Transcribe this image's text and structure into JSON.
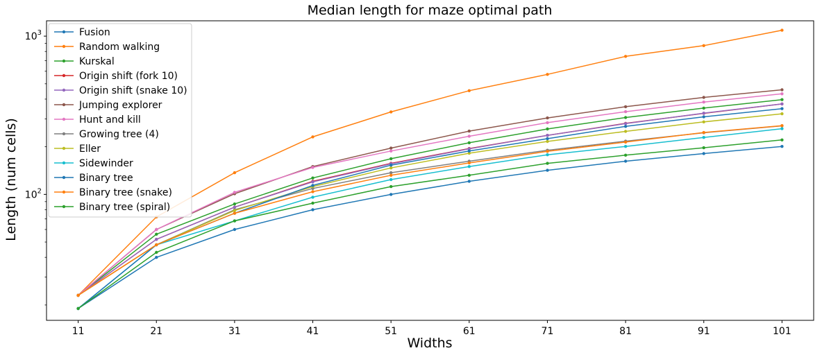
{
  "chart_data": {
    "type": "line",
    "title": "Median length for maze optimal path",
    "xlabel": "Widths",
    "ylabel": "Length (num cells)",
    "y_scale": "log",
    "ylim": [
      16,
      1250
    ],
    "x": [
      11,
      21,
      31,
      41,
      51,
      61,
      71,
      81,
      91,
      101
    ],
    "x_tick_labels": [
      "11",
      "21",
      "31",
      "41",
      "51",
      "61",
      "71",
      "81",
      "91",
      "101"
    ],
    "y_tick_labels": [
      {
        "value": 100,
        "base": "10",
        "exp": "2"
      },
      {
        "value": 1000,
        "base": "10",
        "exp": "3"
      }
    ],
    "grid": false,
    "legend_position": "top-left",
    "marker": "dot",
    "series": [
      {
        "name": "Fusion",
        "color": "#1f77b4",
        "values": [
          19,
          40,
          60,
          80,
          100,
          121,
          142,
          162,
          181,
          201
        ]
      },
      {
        "name": "Random walking",
        "color": "#ff7f0e",
        "values": [
          23,
          72,
          137,
          231,
          332,
          452,
          573,
          745,
          871,
          1090
        ]
      },
      {
        "name": "Kurskal",
        "color": "#2ca02c",
        "values": [
          23,
          56,
          87,
          127,
          168,
          212,
          259,
          306,
          351,
          397
        ]
      },
      {
        "name": "Origin shift (fork 10)",
        "color": "#d62728",
        "values": [
          23,
          52,
          83,
          121,
          157,
          195,
          236,
          281,
          325,
          373
        ]
      },
      {
        "name": "Origin shift (snake 10)",
        "color": "#9467bd",
        "values": [
          23,
          52,
          83,
          120,
          156,
          194,
          236,
          280,
          326,
          373
        ]
      },
      {
        "name": "Jumping explorer",
        "color": "#8c564b",
        "values": [
          23,
          60,
          101,
          150,
          196,
          251,
          304,
          358,
          410,
          458
        ]
      },
      {
        "name": "Hunt and kill",
        "color": "#e377c2",
        "values": [
          23,
          60,
          103,
          148,
          188,
          233,
          284,
          333,
          383,
          432
        ]
      },
      {
        "name": "Growing tree (4)",
        "color": "#7f7f7f",
        "values": [
          23,
          48,
          80,
          109,
          137,
          162,
          190,
          217,
          245,
          271
        ]
      },
      {
        "name": "Eller",
        "color": "#bcbd22",
        "values": [
          23,
          48,
          79,
          112,
          147,
          182,
          216,
          250,
          287,
          323
        ]
      },
      {
        "name": "Sidewinder",
        "color": "#17becf",
        "values": [
          19,
          48,
          68,
          96,
          124,
          150,
          178,
          201,
          229,
          260
        ]
      },
      {
        "name": "Binary tree",
        "color": "#1f77b4",
        "values": [
          19,
          48,
          76,
          114,
          153,
          188,
          225,
          269,
          309,
          348
        ]
      },
      {
        "name": "Binary tree (snake)",
        "color": "#ff7f0e",
        "values": [
          23,
          48,
          76,
          104,
          132,
          158,
          187,
          214,
          246,
          272
        ]
      },
      {
        "name": "Binary tree (spiral)",
        "color": "#2ca02c",
        "values": [
          19,
          43,
          68,
          88,
          112,
          132,
          157,
          177,
          197,
          221
        ]
      }
    ]
  }
}
